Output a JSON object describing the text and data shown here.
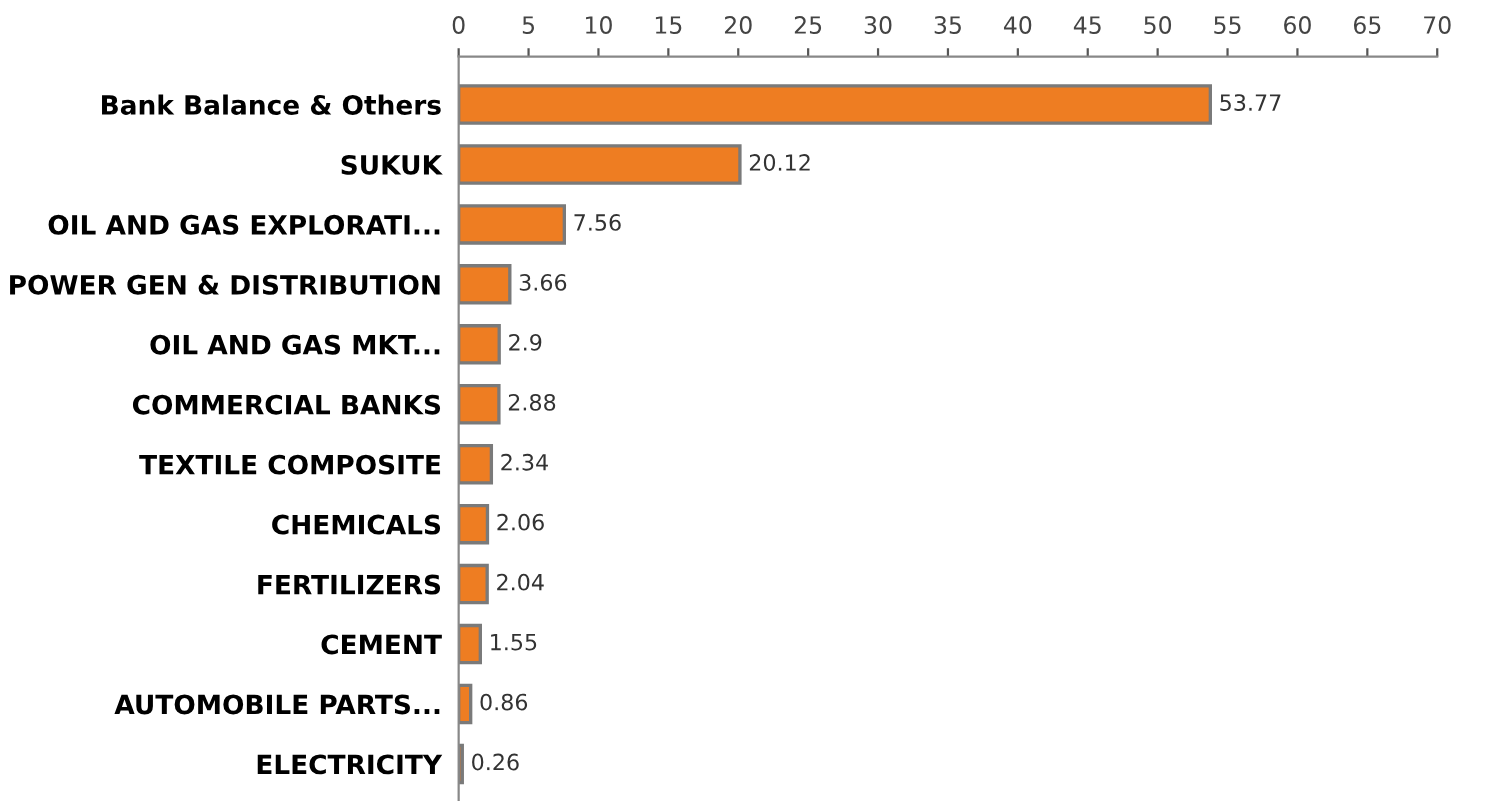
{
  "chart_data": {
    "type": "bar",
    "orientation": "horizontal",
    "categories": [
      "Bank Balance & Others",
      "SUKUK",
      "OIL AND GAS EXPLORATI...",
      "POWER GEN & DISTRIBUTION",
      "OIL AND GAS MKT...",
      "COMMERCIAL BANKS",
      "TEXTILE COMPOSITE",
      "CHEMICALS",
      "FERTILIZERS",
      "CEMENT",
      "AUTOMOBILE PARTS...",
      "ELECTRICITY"
    ],
    "values": [
      53.77,
      20.12,
      7.56,
      3.66,
      2.9,
      2.88,
      2.34,
      2.06,
      2.04,
      1.55,
      0.86,
      0.26
    ],
    "color": "#ee7d22",
    "xlim": [
      0,
      70
    ],
    "xticks": [
      0,
      5,
      10,
      15,
      20,
      25,
      30,
      35,
      40,
      45,
      50,
      55,
      60,
      65,
      70
    ],
    "data_labels": true,
    "grid": false,
    "legend": false
  }
}
